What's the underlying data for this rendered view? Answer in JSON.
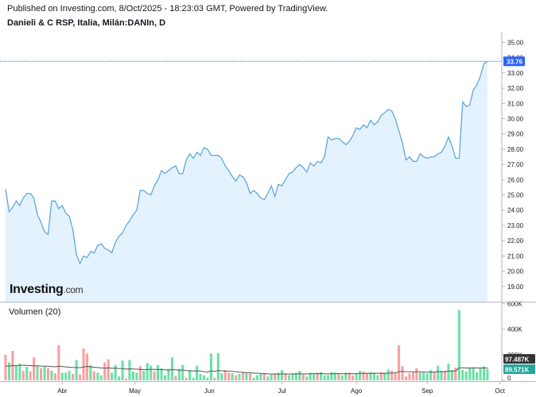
{
  "header": {
    "published": "Published on Investing.com, 8/Oct/2025 - 18:23:03 GMT, Powered by TradingView.",
    "symbol": "Danieli & C RSP, Italia, Milán:DANIn, D"
  },
  "logo": {
    "text": "Investing",
    "suffix": ".com"
  },
  "volume_panel": {
    "title": "Volumen (20)"
  },
  "colors": {
    "price_line": "#5fa8dd",
    "price_fill": "#e3f2fd",
    "last_price_tag": "#2962ff",
    "volume_up": "#6ee0a8",
    "volume_down": "#f7a1a1",
    "volume_ma": "#555555",
    "tag_ma": "#333333",
    "tag_volume": "#26a69a"
  },
  "chart_data": [
    {
      "type": "area",
      "title": "Danieli & C RSP, Italia, Milán:DANIn, D",
      "xlabel": "",
      "ylabel": "",
      "ylim": [
        18.0,
        35.7
      ],
      "yticks": [
        "35.00",
        "34.00",
        "33.00",
        "32.00",
        "31.00",
        "30.00",
        "29.00",
        "28.00",
        "27.00",
        "26.00",
        "25.00",
        "24.00",
        "23.00",
        "22.00",
        "21.00",
        "20.00",
        "19.00"
      ],
      "xticks": [
        "Abr",
        "May",
        "Jun",
        "Jul",
        "Ago",
        "Sep",
        "Oct"
      ],
      "grid": false,
      "last_price": "33.76",
      "values": [
        25.4,
        23.9,
        24.2,
        24.6,
        24.3,
        24.8,
        25.1,
        25.1,
        24.8,
        23.7,
        23.2,
        22.6,
        22.4,
        24.6,
        24.6,
        24.1,
        24.3,
        23.8,
        23.6,
        22.7,
        21.1,
        20.5,
        21.0,
        20.9,
        21.3,
        21.2,
        21.7,
        21.8,
        21.5,
        21.4,
        21.2,
        21.9,
        22.3,
        22.5,
        23.0,
        23.3,
        23.7,
        24.0,
        25.3,
        25.3,
        25.1,
        25.0,
        25.6,
        26.0,
        26.6,
        26.4,
        26.6,
        26.8,
        26.9,
        26.4,
        26.4,
        27.3,
        27.7,
        27.4,
        27.8,
        27.6,
        28.1,
        28.0,
        27.6,
        27.6,
        27.6,
        27.4,
        26.9,
        26.6,
        26.2,
        25.9,
        26.3,
        26.2,
        25.8,
        25.1,
        25.3,
        25.1,
        24.8,
        24.7,
        25.1,
        25.6,
        24.9,
        25.7,
        25.6,
        26.0,
        26.4,
        26.5,
        26.8,
        27.0,
        26.8,
        26.5,
        27.1,
        26.9,
        27.2,
        27.1,
        27.5,
        28.8,
        28.6,
        28.7,
        28.7,
        28.5,
        28.3,
        28.5,
        28.9,
        29.4,
        29.3,
        29.6,
        29.4,
        29.9,
        29.6,
        29.8,
        30.2,
        30.4,
        30.6,
        30.5,
        30.0,
        29.2,
        28.4,
        27.3,
        27.5,
        27.2,
        27.2,
        27.7,
        27.5,
        27.4,
        27.5,
        27.5,
        27.7,
        27.8,
        28.2,
        28.8,
        28.2,
        27.4,
        27.4,
        31.1,
        30.8,
        30.9,
        31.9,
        32.2,
        32.8,
        33.6,
        33.76
      ],
      "x_index_range": [
        0,
        135
      ],
      "tick_positions": {
        "Abr": 16,
        "May": 36.5,
        "Jun": 57.5,
        "Jul": 78,
        "Ago": 99,
        "Sep": 119,
        "Oct": 139.5
      }
    },
    {
      "type": "bar",
      "title": "Volumen (20)",
      "ylim": [
        0,
        610
      ],
      "yticks": [
        "600K",
        "400K",
        "200K",
        "0"
      ],
      "units": "K",
      "current_ma": "97.487K",
      "current_volume": "89.571K",
      "volumes": [
        200,
        140,
        230,
        115,
        130,
        75,
        105,
        70,
        180,
        110,
        95,
        105,
        95,
        75,
        55,
        275,
        60,
        60,
        75,
        50,
        160,
        45,
        250,
        210,
        120,
        70,
        60,
        40,
        140,
        165,
        60,
        120,
        30,
        155,
        15,
        160,
        70,
        60,
        110,
        75,
        135,
        115,
        70,
        120,
        95,
        40,
        90,
        180,
        35,
        90,
        120,
        20,
        80,
        20,
        115,
        50,
        40,
        20,
        210,
        20,
        215,
        55,
        80,
        60,
        55,
        40,
        50,
        60,
        55,
        55,
        20,
        40,
        50,
        55,
        30,
        45,
        50,
        60,
        80,
        55,
        40,
        55,
        60,
        75,
        45,
        30,
        60,
        55,
        60,
        65,
        40,
        40,
        65,
        60,
        55,
        40,
        60,
        60,
        40,
        55,
        75,
        70,
        55,
        65,
        60,
        40,
        65,
        60,
        85,
        75,
        55,
        275,
        110,
        30,
        55,
        60,
        95,
        60,
        60,
        55,
        80,
        65,
        115,
        75,
        75,
        130,
        80,
        100,
        550,
        80,
        70,
        95,
        100,
        65,
        100,
        110,
        90
      ],
      "up": [
        0,
        1,
        0,
        1,
        1,
        0,
        1,
        0,
        0,
        1,
        0,
        1,
        0,
        1,
        0,
        0,
        1,
        1,
        1,
        0,
        1,
        0,
        0,
        0,
        1,
        0,
        1,
        1,
        0,
        0,
        1,
        1,
        1,
        1,
        0,
        1,
        1,
        1,
        0,
        1,
        1,
        1,
        0,
        1,
        1,
        1,
        1,
        1,
        0,
        1,
        1,
        0,
        1,
        1,
        1,
        1,
        1,
        1,
        1,
        0,
        1,
        1,
        0,
        0,
        1,
        0,
        1,
        0,
        1,
        0,
        1,
        1,
        1,
        0,
        1,
        1,
        0,
        1,
        1,
        0,
        1,
        1,
        1,
        1,
        0,
        1,
        1,
        1,
        0,
        1,
        1,
        1,
        1,
        1,
        0,
        1,
        1,
        0,
        0,
        1,
        1,
        0,
        0,
        1,
        1,
        1,
        0,
        1,
        1,
        0,
        0,
        0,
        0,
        0,
        0,
        0,
        0,
        1,
        1,
        1,
        1,
        0,
        1,
        1,
        0,
        1,
        1,
        0,
        1,
        1,
        1,
        1,
        1,
        1,
        1,
        1,
        1
      ],
      "ma": [
        110,
        112,
        115,
        116,
        118,
        118,
        117,
        115,
        114,
        113,
        112,
        111,
        110,
        108,
        106,
        110,
        108,
        105,
        103,
        101,
        100,
        99,
        105,
        108,
        106,
        103,
        100,
        97,
        96,
        97,
        95,
        95,
        93,
        92,
        88,
        90,
        89,
        87,
        86,
        84,
        85,
        86,
        85,
        85,
        84,
        82,
        80,
        84,
        82,
        80,
        80,
        76,
        75,
        73,
        74,
        72,
        68,
        65,
        74,
        70,
        77,
        75,
        73,
        72,
        70,
        68,
        65,
        63,
        60,
        60,
        56,
        56,
        54,
        53,
        50,
        50,
        50,
        49,
        50,
        50,
        49,
        50,
        50,
        51,
        50,
        50,
        51,
        52,
        52,
        53,
        52,
        50,
        51,
        52,
        52,
        52,
        52,
        52,
        52,
        52,
        53,
        54,
        55,
        55,
        56,
        55,
        55,
        55,
        56,
        57,
        57,
        67,
        70,
        68,
        67,
        66,
        67,
        67,
        65,
        65,
        65,
        65,
        68,
        68,
        68,
        72,
        72,
        74,
        98,
        98,
        97,
        97,
        98,
        97,
        97,
        97,
        97
      ]
    }
  ]
}
